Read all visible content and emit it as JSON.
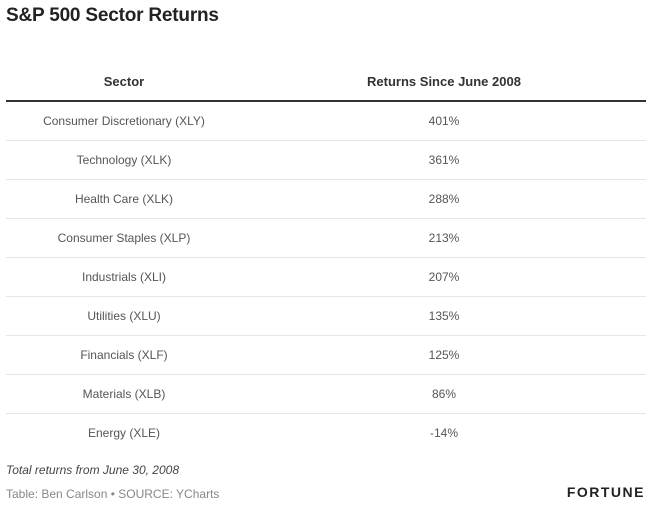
{
  "title": "S&P 500 Sector Returns",
  "table": {
    "headers": [
      "Sector",
      "Returns Since June 2008"
    ]
  },
  "chart_data": {
    "type": "table",
    "title": "S&P 500 Sector Returns",
    "columns": [
      "Sector",
      "Returns Since June 2008"
    ],
    "rows": [
      [
        "Consumer Discretionary (XLY)",
        "401%"
      ],
      [
        "Technology (XLK)",
        "361%"
      ],
      [
        "Health Care (XLK)",
        "288%"
      ],
      [
        "Consumer Staples (XLP)",
        "213%"
      ],
      [
        "Industrials (XLI)",
        "207%"
      ],
      [
        "Utilities (XLU)",
        "135%"
      ],
      [
        "Financials (XLF)",
        "125%"
      ],
      [
        "Materials (XLB)",
        "86%"
      ],
      [
        "Energy (XLE)",
        "-14%"
      ]
    ]
  },
  "footer": {
    "note": "Total returns from June 30, 2008",
    "credit": "Table: Ben Carlson • SOURCE: YCharts",
    "brand": "FORTUNE"
  }
}
